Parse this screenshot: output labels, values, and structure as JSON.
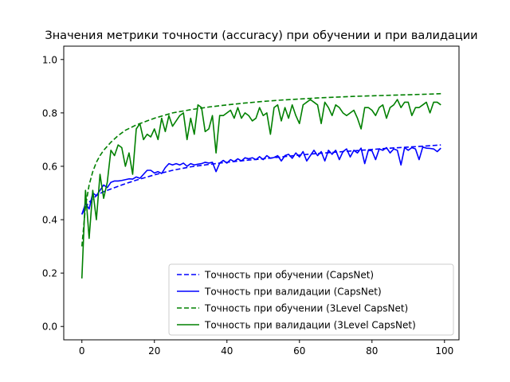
{
  "chart_data": {
    "type": "line",
    "title": "Значения метрики точности (accuracy) при обучении и при валидации",
    "xlabel": "",
    "ylabel": "",
    "xlim": [
      -5,
      104
    ],
    "ylim": [
      -0.05,
      1.05
    ],
    "xticks": [
      "0",
      "20",
      "40",
      "60",
      "80",
      "100"
    ],
    "yticks": [
      "0.0",
      "0.2",
      "0.4",
      "0.6",
      "0.8",
      "1.0"
    ],
    "grid": false,
    "legend_position": "lower-right",
    "colors": {
      "capsnet": "#0000ff",
      "level3": "#008000"
    },
    "series": [
      {
        "name": "Точность при обучении (CapsNet)",
        "color": "#0000ff",
        "dash": "dashed",
        "x": [
          0,
          1,
          2,
          3,
          4,
          5,
          6,
          8,
          10,
          12,
          15,
          20,
          25,
          30,
          35,
          40,
          45,
          50,
          55,
          60,
          65,
          70,
          75,
          80,
          85,
          90,
          95,
          99
        ],
        "y": [
          0.42,
          0.445,
          0.465,
          0.478,
          0.49,
          0.498,
          0.505,
          0.515,
          0.525,
          0.535,
          0.548,
          0.568,
          0.585,
          0.598,
          0.607,
          0.615,
          0.622,
          0.628,
          0.635,
          0.642,
          0.648,
          0.653,
          0.658,
          0.663,
          0.668,
          0.672,
          0.676,
          0.68
        ]
      },
      {
        "name": "Точность при валидации (CapsNet)",
        "color": "#0000ff",
        "dash": "solid",
        "x": [
          0,
          1,
          2,
          3,
          4,
          5,
          6,
          7,
          8,
          9,
          10,
          11,
          12,
          13,
          14,
          15,
          16,
          17,
          18,
          19,
          20,
          21,
          22,
          23,
          24,
          25,
          26,
          27,
          28,
          29,
          30,
          31,
          32,
          33,
          34,
          35,
          36,
          37,
          38,
          39,
          40,
          41,
          42,
          43,
          44,
          45,
          46,
          47,
          48,
          49,
          50,
          51,
          52,
          53,
          54,
          55,
          56,
          57,
          58,
          59,
          60,
          61,
          62,
          63,
          64,
          65,
          66,
          67,
          68,
          69,
          70,
          71,
          72,
          73,
          74,
          75,
          76,
          77,
          78,
          79,
          80,
          81,
          82,
          83,
          84,
          85,
          86,
          87,
          88,
          89,
          90,
          91,
          92,
          93,
          94,
          95,
          96,
          97,
          98,
          99
        ],
        "y": [
          0.42,
          0.46,
          0.44,
          0.5,
          0.49,
          0.51,
          0.53,
          0.52,
          0.54,
          0.545,
          0.545,
          0.547,
          0.55,
          0.553,
          0.552,
          0.56,
          0.555,
          0.57,
          0.585,
          0.585,
          0.575,
          0.58,
          0.573,
          0.595,
          0.61,
          0.605,
          0.61,
          0.605,
          0.612,
          0.6,
          0.61,
          0.605,
          0.608,
          0.61,
          0.615,
          0.612,
          0.615,
          0.58,
          0.612,
          0.622,
          0.612,
          0.625,
          0.618,
          0.628,
          0.62,
          0.632,
          0.628,
          0.632,
          0.625,
          0.636,
          0.625,
          0.64,
          0.63,
          0.633,
          0.64,
          0.62,
          0.64,
          0.645,
          0.63,
          0.65,
          0.635,
          0.655,
          0.62,
          0.64,
          0.66,
          0.64,
          0.655,
          0.62,
          0.66,
          0.645,
          0.66,
          0.625,
          0.655,
          0.665,
          0.635,
          0.66,
          0.65,
          0.668,
          0.61,
          0.66,
          0.658,
          0.625,
          0.665,
          0.66,
          0.67,
          0.65,
          0.665,
          0.66,
          0.605,
          0.67,
          0.66,
          0.67,
          0.665,
          0.625,
          0.672,
          0.668,
          0.667,
          0.665,
          0.655,
          0.668
        ]
      },
      {
        "name": "Точность при обучении (3Level CapsNet)",
        "color": "#008000",
        "dash": "dashed",
        "x": [
          0,
          1,
          2,
          3,
          4,
          5,
          6,
          8,
          10,
          12,
          15,
          18,
          20,
          25,
          30,
          35,
          40,
          45,
          50,
          55,
          60,
          65,
          70,
          75,
          80,
          85,
          90,
          95,
          99
        ],
        "y": [
          0.3,
          0.45,
          0.53,
          0.58,
          0.615,
          0.64,
          0.66,
          0.69,
          0.715,
          0.735,
          0.755,
          0.77,
          0.78,
          0.8,
          0.812,
          0.822,
          0.83,
          0.837,
          0.843,
          0.848,
          0.852,
          0.856,
          0.859,
          0.862,
          0.864,
          0.866,
          0.868,
          0.87,
          0.872
        ]
      },
      {
        "name": "Точность при валидации (3Level CapsNet)",
        "color": "#008000",
        "dash": "solid",
        "x": [
          0,
          1,
          2,
          3,
          4,
          5,
          6,
          7,
          8,
          9,
          10,
          11,
          12,
          13,
          14,
          15,
          16,
          17,
          18,
          19,
          20,
          21,
          22,
          23,
          24,
          25,
          26,
          27,
          28,
          29,
          30,
          31,
          32,
          33,
          34,
          35,
          36,
          37,
          38,
          39,
          40,
          41,
          42,
          43,
          44,
          45,
          46,
          47,
          48,
          49,
          50,
          51,
          52,
          53,
          54,
          55,
          56,
          57,
          58,
          59,
          60,
          61,
          62,
          63,
          64,
          65,
          66,
          67,
          68,
          69,
          70,
          71,
          72,
          73,
          74,
          75,
          76,
          77,
          78,
          79,
          80,
          81,
          82,
          83,
          84,
          85,
          86,
          87,
          88,
          89,
          90,
          91,
          92,
          93,
          94,
          95,
          96,
          97,
          98,
          99
        ],
        "y": [
          0.18,
          0.51,
          0.33,
          0.51,
          0.4,
          0.57,
          0.48,
          0.54,
          0.66,
          0.64,
          0.68,
          0.67,
          0.6,
          0.65,
          0.57,
          0.74,
          0.76,
          0.7,
          0.72,
          0.71,
          0.74,
          0.7,
          0.78,
          0.73,
          0.79,
          0.75,
          0.77,
          0.79,
          0.8,
          0.7,
          0.78,
          0.72,
          0.83,
          0.82,
          0.73,
          0.74,
          0.79,
          0.65,
          0.79,
          0.79,
          0.8,
          0.81,
          0.78,
          0.82,
          0.78,
          0.8,
          0.79,
          0.77,
          0.78,
          0.82,
          0.79,
          0.8,
          0.72,
          0.82,
          0.83,
          0.77,
          0.82,
          0.78,
          0.83,
          0.79,
          0.76,
          0.83,
          0.84,
          0.85,
          0.84,
          0.83,
          0.76,
          0.84,
          0.82,
          0.79,
          0.83,
          0.82,
          0.8,
          0.79,
          0.8,
          0.81,
          0.78,
          0.74,
          0.82,
          0.82,
          0.81,
          0.79,
          0.82,
          0.83,
          0.78,
          0.82,
          0.83,
          0.85,
          0.82,
          0.84,
          0.84,
          0.79,
          0.82,
          0.82,
          0.83,
          0.84,
          0.8,
          0.84,
          0.84,
          0.83
        ]
      }
    ]
  }
}
